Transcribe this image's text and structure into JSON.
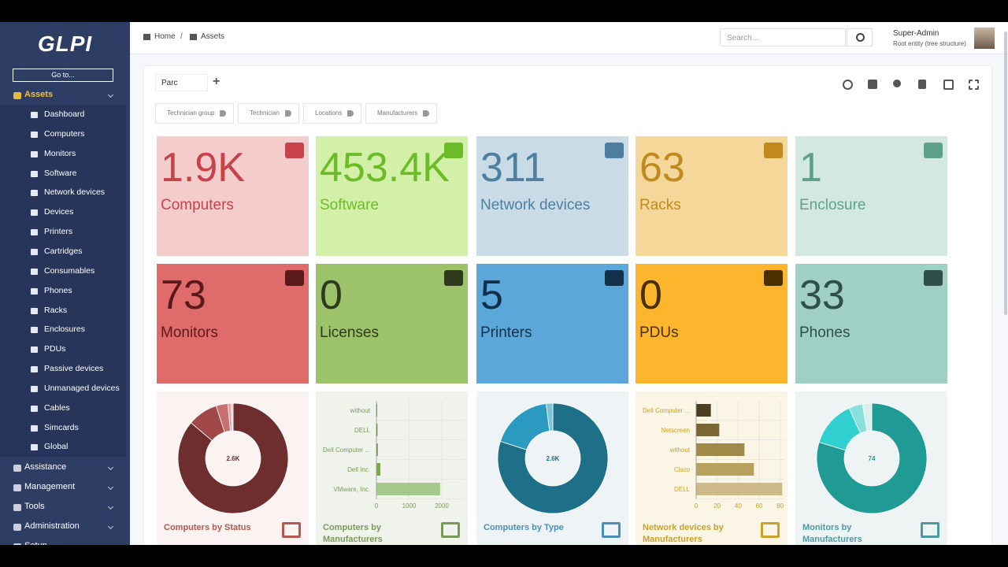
{
  "sidebar": {
    "logo": "GLPI",
    "goto": "Go to...",
    "menu": [
      {
        "label": "Assets",
        "items": [
          "Dashboard",
          "Computers",
          "Monitors",
          "Software",
          "Network devices",
          "Devices",
          "Printers",
          "Cartridges",
          "Consumables",
          "Phones",
          "Racks",
          "Enclosures",
          "PDUs",
          "Passive devices",
          "Unmanaged devices",
          "Cables",
          "Simcards",
          "Global"
        ]
      },
      {
        "label": "Assistance"
      },
      {
        "label": "Management"
      },
      {
        "label": "Tools"
      },
      {
        "label": "Administration"
      },
      {
        "label": "Setup"
      }
    ]
  },
  "header": {
    "breadcrumb": [
      "Home",
      "Assets"
    ],
    "search_placeholder": "Search...",
    "user": "Super-Admin",
    "entity": "Root entity (tree structure)"
  },
  "dashboard": {
    "name": "Parc",
    "filters": [
      "Technician group",
      "Technician",
      "Locations",
      "Manufacturers"
    ]
  },
  "cards": [
    {
      "value": "1.9K",
      "label": "Computers",
      "bg": "#f4cccc",
      "fg": "#c8424a"
    },
    {
      "value": "453.4K",
      "label": "Software",
      "bg": "#d3f0a8",
      "fg": "#6cbb29"
    },
    {
      "value": "311",
      "label": "Network devices",
      "bg": "#c9dbe6",
      "fg": "#4f7fa0"
    },
    {
      "value": "63",
      "label": "Racks",
      "bg": "#f5d79a",
      "fg": "#c18a1e"
    },
    {
      "value": "1",
      "label": "Enclosure",
      "bg": "#d3e8e2",
      "fg": "#5fa08c"
    },
    {
      "value": "73",
      "label": "Monitors",
      "bg": "#e06b6b",
      "fg": "#5a1a1a"
    },
    {
      "value": "0",
      "label": "Licenses",
      "bg": "#9cc26a",
      "fg": "#2e3a1c"
    },
    {
      "value": "5",
      "label": "Printers",
      "bg": "#5ba7da",
      "fg": "#11314a"
    },
    {
      "value": "0",
      "label": "PDUs",
      "bg": "#fdb52e",
      "fg": "#4a3000"
    },
    {
      "value": "33",
      "label": "Phones",
      "bg": "#a0cfc3",
      "fg": "#2e5048"
    }
  ],
  "widgets": [
    {
      "type": "donut",
      "title": "Computers by Status",
      "center": "2.6K",
      "values": [
        2240,
        230,
        90,
        25,
        15
      ],
      "colors": [
        "#6e2e2e",
        "#a04848",
        "#c87070",
        "#e0a0a0",
        "#f0c8c8"
      ],
      "bg": "#fbf2f2",
      "title_color": "#b5574f"
    },
    {
      "type": "bar",
      "title": "Computers by Manufacturers",
      "categories": [
        "without",
        "DELL",
        "Dell Computer ...",
        "Dell Inc.",
        "VMware, Inc."
      ],
      "values": [
        20,
        30,
        40,
        120,
        1950
      ],
      "colors": [
        "#3d5a1e",
        "#4e7326",
        "#5e8a33",
        "#7aa84b",
        "#a5c98a"
      ],
      "xlim": [
        0,
        2700
      ],
      "xticks": [
        0,
        1000,
        2000
      ],
      "bg": "#f0f3ec",
      "title_color": "#7a9a5a"
    },
    {
      "type": "donut",
      "title": "Computers by Type",
      "center": "2.6K",
      "values": [
        2080,
        470,
        50
      ],
      "colors": [
        "#1e7088",
        "#2a9ac0",
        "#7cc4dc"
      ],
      "bg": "#eef3f6",
      "title_color": "#4c8fb8"
    },
    {
      "type": "bar",
      "title": "Network devices by Manufacturers",
      "categories": [
        "Dell Computer ...",
        "Netscreen",
        "without",
        "Cisco",
        "DELL"
      ],
      "values": [
        14,
        22,
        46,
        55,
        82
      ],
      "colors": [
        "#4a3f1f",
        "#7a6632",
        "#a08a4a",
        "#b9a160",
        "#cdb98a"
      ],
      "xlim": [
        0,
        84
      ],
      "xticks": [
        0,
        20,
        40,
        60,
        80
      ],
      "bg": "#fbf5e6",
      "title_color": "#c9a227"
    },
    {
      "type": "donut",
      "title": "Monitors by Manufacturers",
      "center": "74",
      "values": [
        59,
        10,
        3,
        2
      ],
      "colors": [
        "#1f9a95",
        "#2fd0cf",
        "#8ae0dc",
        "#d8f0ee"
      ],
      "bg": "#eef3f3",
      "title_color": "#4e9aa3"
    }
  ]
}
